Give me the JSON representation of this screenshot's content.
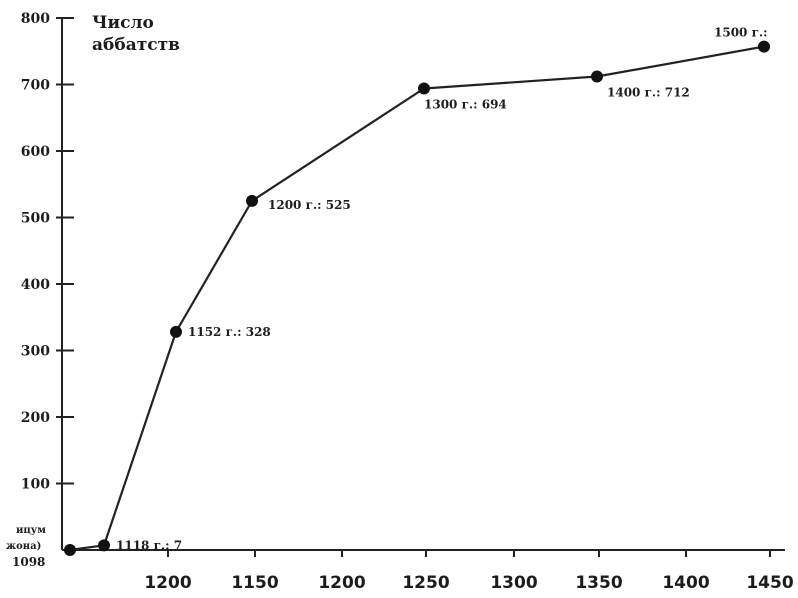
{
  "chart_data": {
    "type": "line",
    "ylabel": "Число аббатств",
    "ylim": [
      0,
      800
    ],
    "y_ticks": [
      "800",
      "700",
      "600",
      "500",
      "400",
      "300",
      "200",
      "100"
    ],
    "x_tick_labels": [
      "1200",
      "1150",
      "1200",
      "1250",
      "1300",
      "1350",
      "1400",
      "1450"
    ],
    "origin_label_lines": [
      "ицум",
      "жона)"
    ],
    "origin_year": "1098",
    "series": [
      {
        "x": [
          1098,
          1118,
          1152,
          1200,
          1300,
          1400,
          1500
        ],
        "values": [
          0,
          7,
          328,
          525,
          694,
          712,
          757
        ]
      }
    ],
    "point_labels": [
      "",
      "1118 г.: 7",
      "1152 г.: 328",
      "1200 г.: 525",
      "1300 г.: 694",
      "1400 г.: 712",
      "1500 г.:"
    ],
    "grid": false
  }
}
